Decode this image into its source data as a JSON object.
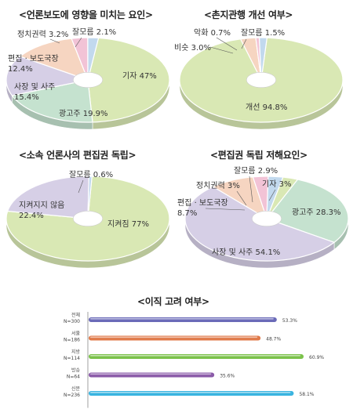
{
  "chart_data": [
    {
      "type": "pie",
      "title": "<언론보도에 영향을 미치는 요인>",
      "slices": [
        {
          "label": "기자 47%",
          "value": 47.0,
          "color": "#d9e8b4"
        },
        {
          "label": "광고주 19.9%",
          "value": 19.9,
          "color": "#c5e2cf"
        },
        {
          "label": "사장 및 사주\n15.4%",
          "value": 15.4,
          "color": "#d6cfe6"
        },
        {
          "label": "편집 · 보도국장\n12.4%",
          "value": 12.4,
          "color": "#f6d5c1"
        },
        {
          "label": "정치권력 3.2%",
          "value": 3.2,
          "color": "#f2c3d6"
        },
        {
          "label": "잘모름 2.1%",
          "value": 2.1,
          "color": "#c2d9ee"
        }
      ]
    },
    {
      "type": "pie",
      "title": "<촌지관행 개선 여부>",
      "slices": [
        {
          "label": "개선 94.8%",
          "value": 94.8,
          "color": "#d9e8b4"
        },
        {
          "label": "비슷 3.0%",
          "value": 3.0,
          "color": "#f6d5c1"
        },
        {
          "label": "악화 0.7%",
          "value": 0.7,
          "color": "#f2c3d6"
        },
        {
          "label": "잘모름 1.5%",
          "value": 1.5,
          "color": "#c2d9ee"
        }
      ]
    },
    {
      "type": "pie",
      "title": "<소속 언론사의 편집권 독립>",
      "slices": [
        {
          "label": "지켜짐 77%",
          "value": 77.0,
          "color": "#d9e8b4"
        },
        {
          "label": "지켜지지 않음\n22.4%",
          "value": 22.4,
          "color": "#d6cfe6"
        },
        {
          "label": "잘모름 0.6%",
          "value": 0.6,
          "color": "#c2d9ee"
        }
      ]
    },
    {
      "type": "pie",
      "title": "<편집권 독립 저해요인>",
      "slices": [
        {
          "label": "기자 3%",
          "value": 3.0,
          "color": "#d9e8b4"
        },
        {
          "label": "광고주 28.3%",
          "value": 28.3,
          "color": "#c5e2cf"
        },
        {
          "label": "사장 및 사주 54.1%",
          "value": 54.1,
          "color": "#d6cfe6"
        },
        {
          "label": "편집 · 보도국장\n8.7%",
          "value": 8.7,
          "color": "#f6d5c1"
        },
        {
          "label": "정치권력 3%",
          "value": 3.0,
          "color": "#f2c3d6"
        },
        {
          "label": "잘모름 2.9%",
          "value": 2.9,
          "color": "#c2d9ee"
        }
      ]
    },
    {
      "type": "bar",
      "orientation": "horizontal",
      "title": "<이직 고려 여부>",
      "categories": [
        "전체\nN=300",
        "서울\nN=186",
        "지방\nN=114",
        "방송\nN=64",
        "신문\nN=236"
      ],
      "values": [
        53.3,
        48.7,
        60.9,
        35.6,
        58.1
      ],
      "value_labels": [
        "53.3%",
        "48.7%",
        "60.9%",
        "35.6%",
        "58.1%"
      ],
      "colors": [
        "#6a6ab8",
        "#e07a4a",
        "#7bc24a",
        "#8a5aa8",
        "#3ab4e0"
      ],
      "xlim": [
        0,
        70
      ]
    }
  ]
}
